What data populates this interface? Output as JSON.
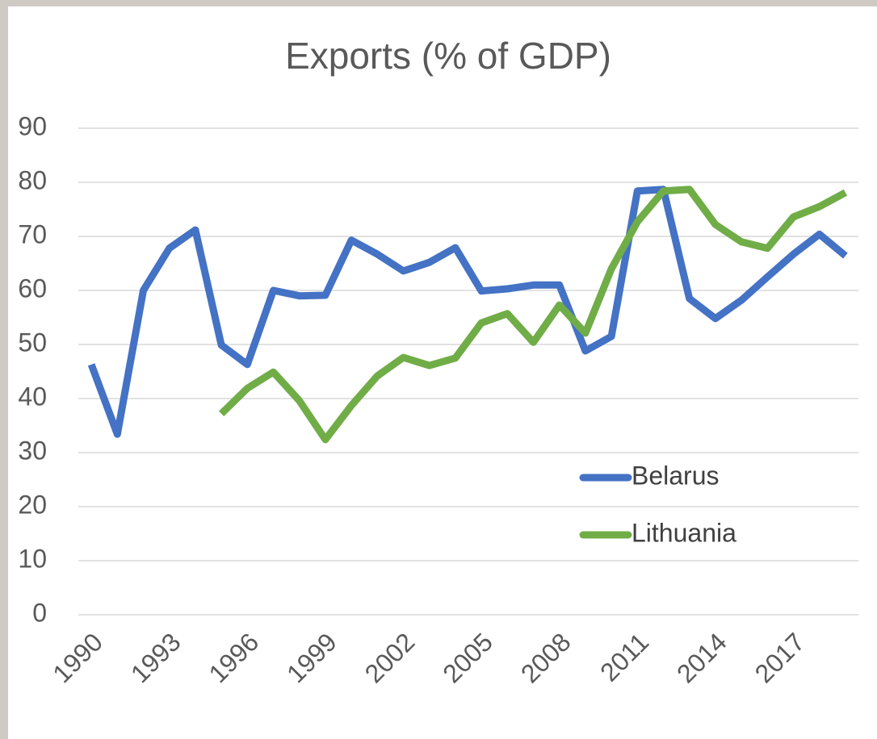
{
  "chart_data": {
    "type": "line",
    "title": "Exports (% of GDP)",
    "categories": [
      "1990",
      null,
      null,
      "1993",
      null,
      null,
      "1996",
      null,
      null,
      "1999",
      null,
      null,
      "2002",
      null,
      null,
      "2005",
      null,
      null,
      "2008",
      null,
      null,
      "2011",
      null,
      null,
      "2014",
      null,
      null,
      "2017",
      null,
      null
    ],
    "series": [
      {
        "name": "Belarus",
        "color": "#4472c4",
        "values": [
          46.3,
          33.4,
          60,
          67.8,
          71.2,
          49.9,
          46.3,
          60,
          59,
          59.1,
          69.3,
          66.7,
          63.6,
          65.2,
          67.9,
          59.9,
          60.3,
          61,
          61,
          48.8,
          51.5,
          78.4,
          78.7,
          58.5,
          54.8,
          58.2,
          62.5,
          66.7,
          70.4,
          66.4
        ]
      },
      {
        "name": "Lithuania",
        "color": "#70ad47",
        "values": [
          null,
          null,
          null,
          null,
          null,
          37.2,
          41.9,
          44.9,
          39.6,
          32.4,
          38.7,
          44.2,
          47.6,
          46.1,
          47.5,
          54,
          55.7,
          50.4,
          57.3,
          52.1,
          64,
          72.7,
          78.4,
          78.7,
          72.2,
          69,
          67.8,
          73.6,
          75.5,
          78.1
        ]
      }
    ],
    "ylim": [
      0,
      90
    ],
    "yticks": [
      0,
      10,
      20,
      30,
      40,
      50,
      60,
      70,
      80,
      90
    ],
    "grid": true,
    "legend": "right"
  }
}
